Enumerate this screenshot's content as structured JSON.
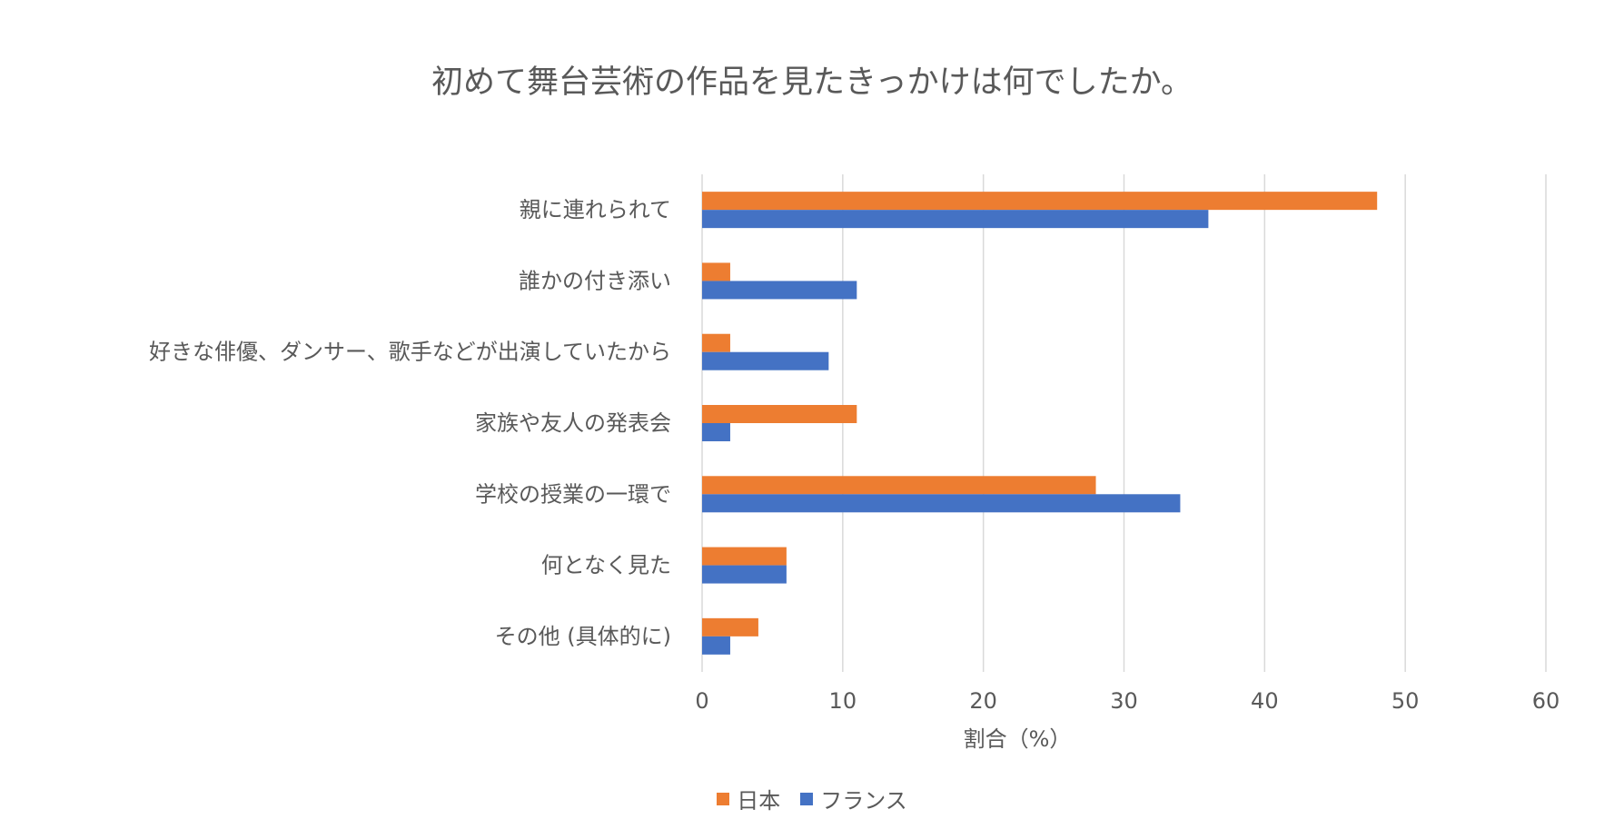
{
  "chart_data": {
    "type": "bar",
    "orientation": "horizontal",
    "title": "初めて舞台芸術の作品を見たきっかけは何でしたか。",
    "xlabel": "割合（%）",
    "ylabel": "",
    "categories": [
      "親に連れられて",
      "誰かの付き添い",
      "好きな俳優、ダンサー、歌手などが出演していたから",
      "家族や友人の発表会",
      "学校の授業の一環で",
      "何となく見た",
      "その他 (具体的に)"
    ],
    "series": [
      {
        "name": "日本",
        "color": "#ED7D31",
        "values": [
          48,
          2,
          2,
          11,
          28,
          6,
          4
        ]
      },
      {
        "name": "フランス",
        "color": "#4472C4",
        "values": [
          36,
          11,
          9,
          2,
          34,
          6,
          2
        ]
      }
    ],
    "xlim": [
      0,
      60
    ],
    "xticks": [
      "0",
      "10",
      "20",
      "30",
      "40",
      "50",
      "60"
    ],
    "grid": true,
    "legend_position": "bottom"
  },
  "colors": {
    "grid": "#D9D9D9",
    "text": "#595959"
  }
}
